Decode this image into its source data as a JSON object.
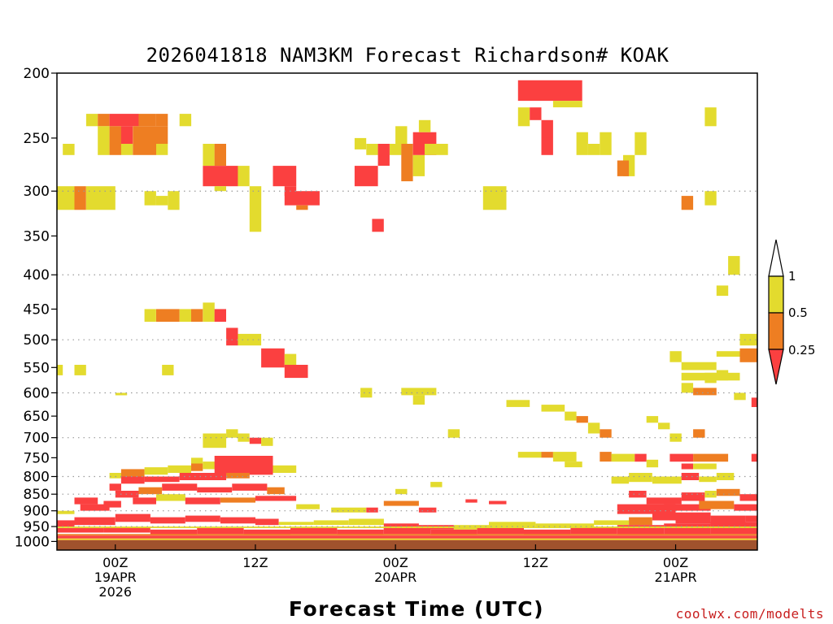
{
  "chart_data": {
    "type": "heatmap",
    "title": "2026041818 NAM3KM Forecast Richardson# KOAK",
    "xlabel": "Forecast Time (UTC)",
    "ylabel": "",
    "credit": "coolwx.com/modelts",
    "x_range_hours": [
      -5,
      55
    ],
    "y_range_hpa": [
      200,
      1030
    ],
    "y_scale": "log",
    "grid": "dotted horizontal",
    "x_ticks": [
      {
        "hour": 0,
        "lines": [
          "00Z",
          "19APR",
          "2026"
        ]
      },
      {
        "hour": 12,
        "lines": [
          "12Z"
        ]
      },
      {
        "hour": 24,
        "lines": [
          "00Z",
          "20APR"
        ]
      },
      {
        "hour": 36,
        "lines": [
          "12Z"
        ]
      },
      {
        "hour": 48,
        "lines": [
          "00Z",
          "21APR"
        ]
      }
    ],
    "y_ticks": [
      200,
      250,
      300,
      350,
      400,
      450,
      500,
      550,
      600,
      650,
      700,
      750,
      800,
      850,
      900,
      950,
      1000
    ],
    "grid_levels": [
      300,
      400,
      500,
      600,
      700,
      800,
      850,
      900,
      950
    ],
    "legend": {
      "position": "right",
      "labels": [
        "1",
        "0.5",
        "0.25"
      ],
      "colors": {
        "lt1": "#e3db2e",
        "lt05": "#ee7e22",
        "lt025": "#fb4040",
        "ground": "#a0522d",
        "outline": "#000000"
      }
    },
    "regions_note": "Each patch: hour start, hour end, top pressure (hPa), bottom pressure (hPa), category (1: Ri<1, 2: Ri<0.5, 3: Ri<0.25)",
    "patches": [
      [
        -2.5,
        -1.5,
        230,
        240,
        1
      ],
      [
        -1.5,
        -0.5,
        230,
        240,
        2
      ],
      [
        -0.5,
        2,
        230,
        240,
        3
      ],
      [
        2,
        3.5,
        230,
        240,
        2
      ],
      [
        3.5,
        4.5,
        230,
        240,
        2
      ],
      [
        -1.5,
        -0.5,
        240,
        255,
        1
      ],
      [
        -0.5,
        0.5,
        240,
        255,
        2
      ],
      [
        0.5,
        1.5,
        240,
        255,
        3
      ],
      [
        1.5,
        4.5,
        240,
        255,
        2
      ],
      [
        -1.5,
        -0.5,
        255,
        265,
        1
      ],
      [
        -0.5,
        0.5,
        255,
        265,
        2
      ],
      [
        0.5,
        1.5,
        255,
        265,
        1
      ],
      [
        1.5,
        3.5,
        255,
        265,
        2
      ],
      [
        3.5,
        4.5,
        255,
        265,
        1
      ],
      [
        -4.5,
        -3.5,
        255,
        265,
        1
      ],
      [
        5.5,
        6.5,
        230,
        240,
        1
      ],
      [
        7.5,
        8.5,
        255,
        275,
        1
      ],
      [
        8.5,
        9.5,
        255,
        275,
        2
      ],
      [
        7.5,
        10.5,
        275,
        295,
        3
      ],
      [
        8.5,
        9.5,
        295,
        300,
        1
      ],
      [
        10.5,
        11.5,
        275,
        295,
        1
      ],
      [
        13.5,
        15.5,
        275,
        295,
        3
      ],
      [
        14.5,
        15.5,
        295,
        305,
        3
      ],
      [
        14.5,
        17.5,
        300,
        315,
        3
      ],
      [
        15.5,
        16.5,
        315,
        320,
        2
      ],
      [
        -5,
        -3.5,
        295,
        320,
        1
      ],
      [
        -3.5,
        -2.5,
        295,
        320,
        2
      ],
      [
        -2.5,
        0,
        295,
        320,
        1
      ],
      [
        2.5,
        3.5,
        300,
        315,
        1
      ],
      [
        3.5,
        4.5,
        305,
        315,
        1
      ],
      [
        4.5,
        5.5,
        300,
        320,
        1
      ],
      [
        11.5,
        12.5,
        295,
        345,
        1
      ],
      [
        20.5,
        21.5,
        250,
        260,
        1
      ],
      [
        21.5,
        22.5,
        255,
        265,
        1
      ],
      [
        22.5,
        23.5,
        255,
        275,
        3
      ],
      [
        20.5,
        22.5,
        275,
        295,
        3
      ],
      [
        23.5,
        24.5,
        255,
        265,
        1
      ],
      [
        24,
        25,
        240,
        255,
        1
      ],
      [
        24.5,
        25.5,
        255,
        270,
        2
      ],
      [
        24.5,
        25.5,
        270,
        290,
        2
      ],
      [
        25.5,
        26.5,
        265,
        285,
        1
      ],
      [
        25.5,
        27.5,
        245,
        265,
        3
      ],
      [
        26,
        27,
        235,
        245,
        1
      ],
      [
        22,
        23,
        330,
        345,
        3
      ],
      [
        26.5,
        28.5,
        255,
        265,
        1
      ],
      [
        31.5,
        33.5,
        295,
        320,
        1
      ],
      [
        34.5,
        40,
        205,
        220,
        3
      ],
      [
        34.5,
        35.5,
        225,
        240,
        1
      ],
      [
        35.5,
        36.5,
        225,
        235,
        3
      ],
      [
        36.5,
        37.5,
        235,
        250,
        3
      ],
      [
        36.5,
        37.5,
        250,
        265,
        3
      ],
      [
        37.5,
        40,
        220,
        225,
        1
      ],
      [
        39.5,
        40.5,
        245,
        265,
        1
      ],
      [
        40.5,
        41.5,
        255,
        265,
        1
      ],
      [
        41.5,
        42.5,
        245,
        265,
        1
      ],
      [
        43.5,
        44.5,
        265,
        285,
        1
      ],
      [
        44.5,
        45.5,
        245,
        265,
        1
      ],
      [
        43,
        44,
        270,
        285,
        2
      ],
      [
        50.5,
        51.5,
        225,
        240,
        1
      ],
      [
        48.5,
        49.5,
        305,
        320,
        2
      ],
      [
        50.5,
        51.5,
        300,
        315,
        1
      ],
      [
        2.5,
        3.5,
        450,
        470,
        1
      ],
      [
        3.5,
        5.5,
        450,
        470,
        2
      ],
      [
        5.5,
        6.5,
        450,
        470,
        1
      ],
      [
        6.5,
        7.5,
        450,
        470,
        2
      ],
      [
        7.5,
        8.5,
        440,
        470,
        1
      ],
      [
        8.5,
        9.5,
        450,
        470,
        3
      ],
      [
        9.5,
        10.5,
        480,
        510,
        3
      ],
      [
        10.5,
        12.5,
        490,
        510,
        1
      ],
      [
        12.5,
        14.5,
        515,
        550,
        3
      ],
      [
        14.5,
        15.5,
        525,
        545,
        1
      ],
      [
        14.5,
        16.5,
        545,
        570,
        3
      ],
      [
        -5,
        -4.5,
        545,
        565,
        1
      ],
      [
        -3.5,
        -2.5,
        545,
        565,
        1
      ],
      [
        4,
        5,
        545,
        565,
        1
      ],
      [
        21,
        22,
        590,
        610,
        1
      ],
      [
        24.5,
        27.5,
        590,
        605,
        1
      ],
      [
        25.5,
        26.5,
        605,
        625,
        1
      ],
      [
        33.5,
        35.5,
        615,
        630,
        1
      ],
      [
        36.5,
        38.5,
        625,
        640,
        1
      ],
      [
        38.5,
        39.5,
        640,
        660,
        1
      ],
      [
        39.5,
        40.5,
        650,
        665,
        2
      ],
      [
        40.5,
        41.5,
        665,
        690,
        1
      ],
      [
        41.5,
        42.5,
        680,
        700,
        2
      ],
      [
        28.5,
        29.5,
        680,
        700,
        1
      ],
      [
        49.5,
        50.5,
        680,
        700,
        2
      ],
      [
        46.5,
        47.5,
        665,
        680,
        1
      ],
      [
        45.5,
        46.5,
        650,
        665,
        1
      ],
      [
        47.5,
        48.5,
        690,
        710,
        1
      ],
      [
        34.5,
        36.5,
        735,
        750,
        1
      ],
      [
        36.5,
        37.5,
        735,
        750,
        2
      ],
      [
        37.5,
        39.5,
        735,
        760,
        1
      ],
      [
        38.5,
        40,
        760,
        775,
        1
      ],
      [
        41.5,
        42.5,
        735,
        760,
        2
      ],
      [
        42.5,
        44.5,
        740,
        760,
        1
      ],
      [
        44.5,
        45.5,
        740,
        760,
        3
      ],
      [
        45.5,
        46.5,
        755,
        775,
        1
      ],
      [
        48.5,
        49.5,
        580,
        600,
        1
      ],
      [
        48.5,
        53.5,
        560,
        575,
        1
      ],
      [
        49.5,
        51.5,
        590,
        605,
        2
      ],
      [
        50.5,
        51.5,
        560,
        580,
        1
      ],
      [
        51.5,
        52.5,
        555,
        575,
        1
      ],
      [
        48.5,
        51.5,
        540,
        555,
        1
      ],
      [
        47.5,
        48.5,
        520,
        540,
        1
      ],
      [
        51.5,
        53.5,
        520,
        530,
        1
      ],
      [
        53.5,
        55,
        515,
        540,
        2
      ],
      [
        53.5,
        55,
        490,
        510,
        1
      ],
      [
        52.5,
        53.5,
        375,
        400,
        1
      ],
      [
        51.5,
        52.5,
        415,
        430,
        1
      ],
      [
        53,
        54,
        600,
        615,
        1
      ],
      [
        54.5,
        55,
        610,
        630,
        3
      ],
      [
        47.5,
        49.5,
        740,
        760,
        3
      ],
      [
        49.5,
        50.5,
        740,
        760,
        2
      ],
      [
        50.5,
        52.5,
        740,
        760,
        2
      ],
      [
        48.5,
        49.5,
        765,
        780,
        3
      ],
      [
        49.5,
        51.5,
        765,
        780,
        1
      ],
      [
        54.5,
        55,
        740,
        760,
        3
      ],
      [
        7.5,
        9.5,
        690,
        725,
        1
      ],
      [
        9.5,
        10.5,
        680,
        700,
        1
      ],
      [
        10.5,
        11.5,
        690,
        710,
        1
      ],
      [
        11.5,
        12.5,
        700,
        715,
        3
      ],
      [
        12.5,
        13.5,
        700,
        720,
        1
      ],
      [
        0,
        1,
        600,
        605,
        1
      ],
      [
        -0.5,
        0.5,
        790,
        805,
        1
      ],
      [
        0.5,
        2.5,
        780,
        800,
        2
      ],
      [
        2.5,
        4.5,
        775,
        795,
        1
      ],
      [
        4.5,
        6.5,
        770,
        790,
        1
      ],
      [
        6.5,
        7.5,
        765,
        785,
        2
      ],
      [
        7.5,
        9.5,
        760,
        780,
        1
      ],
      [
        8.5,
        13.5,
        745,
        795,
        3
      ],
      [
        13.5,
        15.5,
        770,
        790,
        1
      ],
      [
        6.5,
        7.5,
        750,
        765,
        1
      ],
      [
        -5,
        -3.5,
        900,
        910,
        1
      ],
      [
        -3.5,
        -1.5,
        860,
        880,
        3
      ],
      [
        -3,
        -0.5,
        880,
        900,
        3
      ],
      [
        -1,
        0.5,
        870,
        890,
        3
      ],
      [
        -0.5,
        0.5,
        820,
        840,
        3
      ],
      [
        0.5,
        2.5,
        800,
        820,
        3
      ],
      [
        2.5,
        5.5,
        800,
        815,
        3
      ],
      [
        5.5,
        9.5,
        790,
        810,
        3
      ],
      [
        9.5,
        11.5,
        790,
        805,
        2
      ],
      [
        0,
        2,
        840,
        860,
        3
      ],
      [
        2,
        4,
        830,
        850,
        2
      ],
      [
        4,
        7,
        820,
        840,
        3
      ],
      [
        7,
        10,
        830,
        845,
        3
      ],
      [
        10,
        13,
        820,
        840,
        3
      ],
      [
        13,
        14.5,
        830,
        850,
        2
      ],
      [
        1.5,
        3.5,
        860,
        880,
        3
      ],
      [
        3.5,
        6,
        850,
        870,
        1
      ],
      [
        6,
        9,
        860,
        880,
        3
      ],
      [
        9,
        12,
        860,
        875,
        2
      ],
      [
        12,
        15.5,
        855,
        870,
        3
      ],
      [
        15.5,
        17.5,
        880,
        895,
        1
      ],
      [
        18.5,
        21.5,
        890,
        905,
        1
      ],
      [
        21.5,
        22.5,
        890,
        905,
        3
      ],
      [
        23,
        26,
        870,
        885,
        2
      ],
      [
        26,
        27.5,
        890,
        905,
        3
      ],
      [
        30,
        31,
        865,
        875,
        3
      ],
      [
        32,
        33.5,
        870,
        880,
        3
      ],
      [
        24,
        25,
        835,
        850,
        1
      ],
      [
        27,
        28,
        815,
        830,
        1
      ],
      [
        42.5,
        44,
        800,
        820,
        1
      ],
      [
        44,
        46,
        790,
        815,
        1
      ],
      [
        46,
        48.5,
        800,
        820,
        1
      ],
      [
        48.5,
        50,
        790,
        810,
        3
      ],
      [
        50,
        51.5,
        800,
        815,
        1
      ],
      [
        51.5,
        53,
        790,
        810,
        1
      ],
      [
        44,
        45.5,
        840,
        860,
        3
      ],
      [
        45.5,
        48.5,
        860,
        880,
        3
      ],
      [
        48.5,
        50.5,
        845,
        870,
        3
      ],
      [
        50.5,
        51.5,
        840,
        860,
        1
      ],
      [
        51.5,
        53.5,
        835,
        855,
        2
      ],
      [
        53.5,
        55,
        850,
        870,
        3
      ],
      [
        43,
        48,
        880,
        910,
        3
      ],
      [
        47,
        51,
        880,
        900,
        3
      ],
      [
        50,
        53,
        870,
        895,
        2
      ],
      [
        53,
        55,
        880,
        900,
        3
      ],
      [
        -5,
        -3.5,
        930,
        950,
        3
      ],
      [
        -3.5,
        0,
        920,
        945,
        3
      ],
      [
        0,
        3,
        910,
        935,
        3
      ],
      [
        3,
        6,
        920,
        940,
        3
      ],
      [
        6,
        9,
        915,
        935,
        3
      ],
      [
        9,
        12,
        920,
        940,
        3
      ],
      [
        12,
        14,
        925,
        945,
        3
      ],
      [
        14,
        17,
        935,
        945,
        1
      ],
      [
        17,
        20,
        930,
        945,
        1
      ],
      [
        20,
        23,
        925,
        945,
        1
      ],
      [
        23,
        26,
        940,
        960,
        3
      ],
      [
        26,
        29,
        945,
        960,
        3
      ],
      [
        29,
        32,
        945,
        960,
        1
      ],
      [
        32,
        36,
        935,
        955,
        1
      ],
      [
        36,
        41,
        940,
        955,
        1
      ],
      [
        41,
        44,
        930,
        945,
        1
      ],
      [
        44,
        46,
        920,
        945,
        2
      ],
      [
        46,
        48,
        905,
        930,
        3
      ],
      [
        48,
        51,
        905,
        940,
        3
      ],
      [
        51,
        54,
        915,
        945,
        3
      ],
      [
        54,
        55,
        915,
        935,
        3
      ],
      [
        -5,
        -1,
        955,
        970,
        3
      ],
      [
        -1,
        3,
        950,
        970,
        3
      ],
      [
        3,
        7,
        960,
        975,
        3
      ],
      [
        7,
        11,
        955,
        975,
        3
      ],
      [
        11,
        15,
        960,
        975,
        3
      ],
      [
        15,
        19,
        955,
        975,
        3
      ],
      [
        19,
        23,
        960,
        975,
        3
      ],
      [
        23,
        27,
        955,
        975,
        3
      ],
      [
        27,
        31,
        960,
        975,
        3
      ],
      [
        31,
        35,
        955,
        975,
        3
      ],
      [
        35,
        39,
        960,
        975,
        3
      ],
      [
        39,
        43,
        950,
        975,
        3
      ],
      [
        43,
        47,
        945,
        975,
        3
      ],
      [
        47,
        51,
        940,
        975,
        3
      ],
      [
        51,
        55,
        935,
        975,
        3
      ],
      [
        -5,
        55,
        980,
        990,
        3
      ],
      [
        -5,
        55,
        995,
        1005,
        3
      ],
      [
        -5,
        55,
        1010,
        1016,
        3
      ],
      [
        -5,
        55,
        950,
        955,
        1
      ],
      [
        -5,
        55,
        975,
        980,
        2
      ],
      [
        -5,
        55,
        990,
        995,
        1
      ]
    ]
  }
}
